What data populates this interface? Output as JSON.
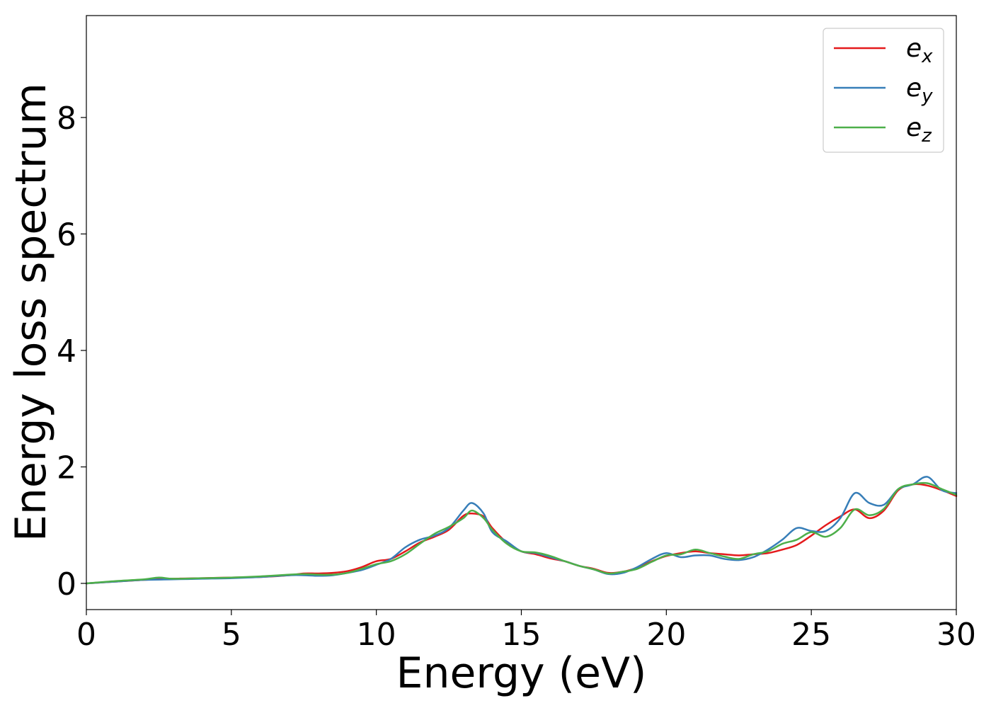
{
  "chart_data": {
    "type": "line",
    "xlabel": "Energy (eV)",
    "ylabel": "Energy loss spectrum",
    "xlim": [
      0,
      30
    ],
    "ylim": [
      -0.45,
      9.75
    ],
    "xticks": [
      0,
      5,
      10,
      15,
      20,
      25,
      30
    ],
    "yticks": [
      0,
      2,
      4,
      6,
      8
    ],
    "grid": false,
    "legend_position": "top-right",
    "series": [
      {
        "name": "e",
        "subscript": "x",
        "color": "#e41a1c",
        "x": [
          0,
          1,
          2,
          3,
          4,
          5,
          6,
          7,
          7.5,
          8,
          8.5,
          9,
          9.5,
          10,
          10.5,
          11,
          11.5,
          12,
          12.5,
          13,
          13.3,
          13.7,
          14,
          14.5,
          15,
          15.5,
          16,
          16.5,
          17,
          17.5,
          18,
          18.5,
          19,
          19.5,
          20,
          20.5,
          21,
          21.5,
          22,
          22.5,
          23,
          23.5,
          24,
          24.5,
          25,
          25.5,
          26,
          26.5,
          27,
          27.5,
          28,
          28.5,
          29,
          29.5,
          30
        ],
        "y": [
          0,
          0.03,
          0.06,
          0.08,
          0.09,
          0.1,
          0.11,
          0.14,
          0.17,
          0.17,
          0.18,
          0.21,
          0.28,
          0.38,
          0.42,
          0.55,
          0.7,
          0.8,
          0.92,
          1.16,
          1.2,
          1.15,
          0.95,
          0.7,
          0.55,
          0.5,
          0.43,
          0.38,
          0.3,
          0.25,
          0.18,
          0.2,
          0.27,
          0.38,
          0.47,
          0.52,
          0.55,
          0.52,
          0.5,
          0.48,
          0.5,
          0.52,
          0.58,
          0.66,
          0.82,
          1.0,
          1.15,
          1.27,
          1.12,
          1.25,
          1.6,
          1.7,
          1.68,
          1.6,
          1.5
        ]
      },
      {
        "name": "e",
        "subscript": "y",
        "color": "#377eb8",
        "x": [
          0,
          1,
          2,
          3,
          4,
          5,
          6,
          7,
          7.5,
          8,
          8.5,
          9,
          9.5,
          10,
          10.5,
          11,
          11.5,
          12,
          12.5,
          13,
          13.3,
          13.7,
          14,
          14.5,
          15,
          15.5,
          16,
          16.5,
          17,
          17.5,
          18,
          18.5,
          19,
          19.5,
          20,
          20.5,
          21,
          21.5,
          22,
          22.5,
          23,
          23.5,
          24,
          24.5,
          25,
          25.5,
          26,
          26.5,
          27,
          27.5,
          28,
          28.5,
          29,
          29.5,
          30
        ],
        "y": [
          0,
          0.03,
          0.06,
          0.07,
          0.08,
          0.09,
          0.11,
          0.14,
          0.14,
          0.13,
          0.14,
          0.18,
          0.23,
          0.32,
          0.42,
          0.62,
          0.75,
          0.82,
          0.95,
          1.25,
          1.38,
          1.2,
          0.88,
          0.72,
          0.55,
          0.52,
          0.45,
          0.38,
          0.3,
          0.24,
          0.16,
          0.18,
          0.28,
          0.42,
          0.52,
          0.45,
          0.48,
          0.48,
          0.42,
          0.4,
          0.45,
          0.58,
          0.75,
          0.95,
          0.9,
          0.9,
          1.12,
          1.55,
          1.38,
          1.35,
          1.62,
          1.7,
          1.83,
          1.6,
          1.55
        ]
      },
      {
        "name": "e",
        "subscript": "z",
        "color": "#4daf4a",
        "x": [
          0,
          1,
          2,
          2.5,
          3,
          4,
          5,
          6,
          7,
          7.5,
          8,
          8.5,
          9,
          9.5,
          10,
          10.5,
          11,
          11.5,
          12,
          12.5,
          13,
          13.3,
          13.7,
          14,
          14.5,
          15,
          15.5,
          16,
          16.5,
          17,
          17.5,
          18,
          18.5,
          19,
          19.5,
          20,
          20.5,
          21,
          21.5,
          22,
          22.5,
          23,
          23.5,
          24,
          24.5,
          25,
          25.5,
          26,
          26.5,
          27,
          27.5,
          28,
          28.5,
          29,
          29.5,
          30
        ],
        "y": [
          0,
          0.04,
          0.07,
          0.1,
          0.08,
          0.09,
          0.1,
          0.12,
          0.15,
          0.16,
          0.15,
          0.15,
          0.18,
          0.25,
          0.33,
          0.38,
          0.5,
          0.68,
          0.85,
          0.97,
          1.12,
          1.25,
          1.12,
          0.92,
          0.68,
          0.55,
          0.53,
          0.47,
          0.38,
          0.3,
          0.24,
          0.17,
          0.2,
          0.25,
          0.37,
          0.48,
          0.5,
          0.58,
          0.52,
          0.46,
          0.42,
          0.5,
          0.55,
          0.68,
          0.75,
          0.88,
          0.8,
          0.95,
          1.27,
          1.17,
          1.28,
          1.62,
          1.7,
          1.72,
          1.62,
          1.52
        ]
      }
    ]
  }
}
